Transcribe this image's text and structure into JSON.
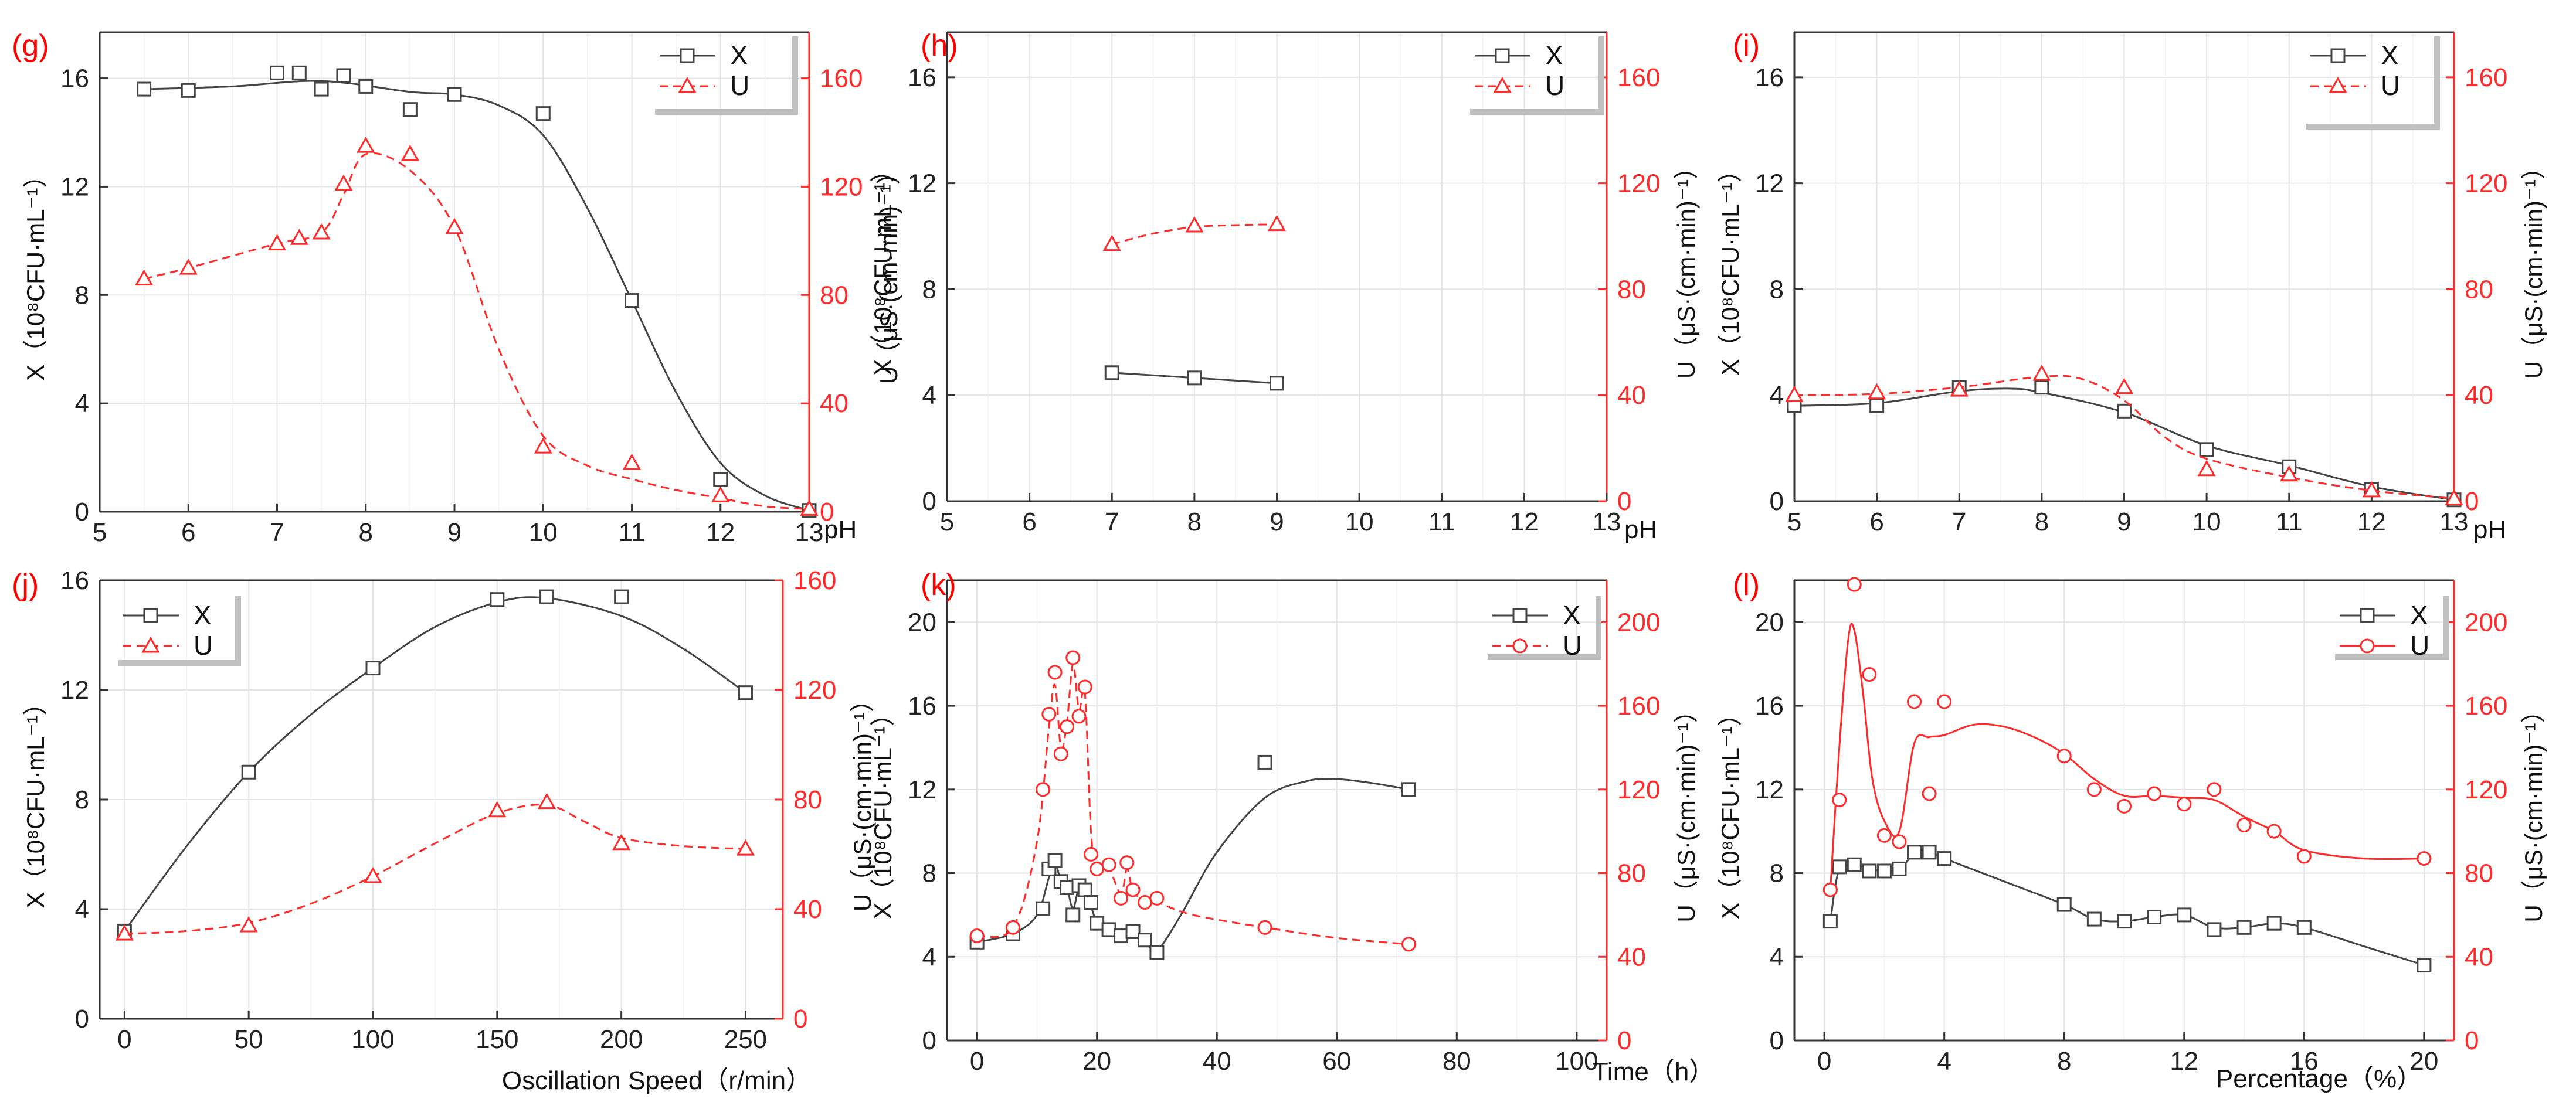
{
  "colors": {
    "x_series": "#444444",
    "u_series": "#ff2a2a",
    "grid": "#e4e4e4",
    "panel_label": "#ff0000",
    "legend_shadow": "#c0c0c0"
  },
  "chart_data": [
    {
      "panel": "(g)",
      "type": "line",
      "x_label": "pH",
      "xlim": [
        5,
        13
      ],
      "xticks": [
        5,
        6,
        7,
        8,
        9,
        10,
        11,
        12,
        13
      ],
      "ylabel_left": "X（10⁸CFU·mL⁻¹）",
      "ylim_left": [
        0,
        17.7
      ],
      "yticks_left": [
        0,
        4,
        8,
        12,
        16
      ],
      "ylabel_right": "U（μS·(cm·min)⁻¹）",
      "ylim_right": [
        0,
        177
      ],
      "yticks_right": [
        0,
        40,
        80,
        120,
        160
      ],
      "legend": [
        "X",
        "U"
      ],
      "legend_position": "top-right",
      "series": [
        {
          "name": "X",
          "axis": "left",
          "marker": "square",
          "line": "solid",
          "x": [
            5.5,
            6,
            7,
            7.25,
            7.5,
            7.75,
            8,
            8.5,
            9,
            10,
            11,
            12,
            13
          ],
          "y": [
            15.6,
            15.55,
            16.2,
            16.2,
            15.6,
            16.1,
            15.7,
            14.85,
            15.4,
            14.7,
            7.8,
            1.2,
            0.05
          ],
          "curve_x": [
            5.5,
            6.5,
            7.5,
            8.5,
            9,
            9.5,
            10,
            10.5,
            11,
            11.5,
            12,
            12.5,
            13
          ],
          "curve_y": [
            15.6,
            15.7,
            15.9,
            15.5,
            15.4,
            15.0,
            13.9,
            11.2,
            7.8,
            4.4,
            1.8,
            0.6,
            0.05
          ]
        },
        {
          "name": "U",
          "axis": "right",
          "marker": "triangle",
          "line": "dashed",
          "x": [
            5.5,
            6,
            7,
            7.25,
            7.5,
            7.75,
            8,
            8.5,
            9,
            10,
            11,
            12,
            13
          ],
          "y": [
            86,
            90,
            99,
            101,
            103,
            121,
            135,
            132,
            105,
            24,
            18,
            6,
            1
          ],
          "curve_x": [
            5.5,
            6,
            7,
            7.5,
            7.75,
            8,
            8.5,
            9,
            9.5,
            10,
            10.5,
            11,
            11.5,
            12,
            12.5,
            13
          ],
          "curve_y": [
            86,
            90,
            99,
            103,
            117,
            132,
            126,
            105,
            60,
            28,
            17,
            12,
            8,
            5,
            2,
            1
          ]
        }
      ]
    },
    {
      "panel": "(h)",
      "type": "line",
      "x_label": "pH",
      "xlim": [
        5,
        13
      ],
      "xticks": [
        5,
        6,
        7,
        8,
        9,
        10,
        11,
        12,
        13
      ],
      "ylabel_left": "X（10⁸CFU·mL⁻¹）",
      "ylim_left": [
        0,
        17.7
      ],
      "yticks_left": [
        0,
        4,
        8,
        12,
        16
      ],
      "ylabel_right": "U（μS·(cm·min)⁻¹）",
      "ylim_right": [
        0,
        177
      ],
      "yticks_right": [
        0,
        40,
        80,
        120,
        160
      ],
      "legend": [
        "X",
        "U"
      ],
      "legend_position": "top-right",
      "series": [
        {
          "name": "X",
          "axis": "left",
          "marker": "square",
          "line": "solid",
          "x": [
            7,
            8,
            9
          ],
          "y": [
            4.85,
            4.65,
            4.45
          ],
          "curve_x": [
            7,
            8,
            9
          ],
          "curve_y": [
            4.85,
            4.65,
            4.45
          ]
        },
        {
          "name": "U",
          "axis": "right",
          "marker": "triangle",
          "line": "dashed",
          "x": [
            7,
            8,
            9
          ],
          "y": [
            97,
            104,
            104.5
          ],
          "curve_x": [
            7,
            7.5,
            8,
            8.5,
            9
          ],
          "curve_y": [
            97,
            101,
            103.5,
            104.2,
            104.5
          ]
        }
      ]
    },
    {
      "panel": "(i)",
      "type": "line",
      "x_label": "pH",
      "xlim": [
        5,
        13
      ],
      "xticks": [
        5,
        6,
        7,
        8,
        9,
        10,
        11,
        12,
        13
      ],
      "ylabel_left": "X（10⁸CFU·mL⁻¹）",
      "ylim_left": [
        0,
        17.7
      ],
      "yticks_left": [
        0,
        4,
        8,
        12,
        16
      ],
      "ylabel_right": "U（μS·(cm·min)⁻¹）",
      "ylim_right": [
        0,
        177
      ],
      "yticks_right": [
        0,
        40,
        80,
        120,
        160
      ],
      "legend": [
        "X",
        "U"
      ],
      "legend_position": "top-right",
      "series": [
        {
          "name": "X",
          "axis": "left",
          "marker": "square",
          "line": "solid",
          "x": [
            5,
            6,
            7,
            8,
            9,
            10,
            11,
            12,
            13
          ],
          "y": [
            3.6,
            3.6,
            4.3,
            4.3,
            3.4,
            1.95,
            1.3,
            0.45,
            0.05
          ],
          "curve_x": [
            5,
            6,
            7,
            7.6,
            8,
            9,
            10,
            11,
            12,
            13
          ],
          "curve_y": [
            3.6,
            3.7,
            4.15,
            4.25,
            4.1,
            3.35,
            2.1,
            1.35,
            0.55,
            0.05
          ]
        },
        {
          "name": "U",
          "axis": "right",
          "marker": "triangle",
          "line": "dashed",
          "x": [
            5,
            6,
            7,
            8,
            9,
            10,
            11,
            12,
            13
          ],
          "y": [
            40,
            41,
            42,
            48,
            43,
            12,
            10,
            4,
            1
          ],
          "curve_x": [
            5,
            6,
            7,
            8,
            8.5,
            9,
            9.5,
            10,
            11,
            12,
            13
          ],
          "curve_y": [
            40,
            40.5,
            43,
            47,
            46,
            38,
            24,
            16,
            9,
            4,
            1
          ]
        }
      ]
    },
    {
      "panel": "(j)",
      "type": "line",
      "x_label": "Oscillation Speed（r/min）",
      "xlim": [
        -10,
        265
      ],
      "xticks": [
        0,
        50,
        100,
        150,
        200,
        250
      ],
      "ylabel_left": "X（10⁸CFU·mL⁻¹）",
      "ylim_left": [
        0,
        16
      ],
      "yticks_left": [
        0,
        4,
        8,
        12,
        16
      ],
      "ylabel_right": "U（μS·(cm·min)⁻¹）",
      "ylim_right": [
        0,
        160
      ],
      "yticks_right": [
        0,
        40,
        80,
        120,
        160
      ],
      "legend": [
        "X",
        "U"
      ],
      "legend_position": "top-left",
      "series": [
        {
          "name": "X",
          "axis": "left",
          "marker": "square",
          "line": "solid",
          "x": [
            0,
            50,
            100,
            150,
            170,
            200,
            250
          ],
          "y": [
            3.2,
            9.0,
            12.8,
            15.3,
            15.4,
            15.4,
            11.9
          ],
          "curve_x": [
            0,
            25,
            50,
            75,
            100,
            125,
            150,
            170,
            200,
            225,
            250
          ],
          "curve_y": [
            3.2,
            6.3,
            9.0,
            11.1,
            12.8,
            14.3,
            15.2,
            15.35,
            14.7,
            13.5,
            11.9
          ]
        },
        {
          "name": "U",
          "axis": "right",
          "marker": "triangle",
          "line": "dashed",
          "x": [
            0,
            50,
            100,
            150,
            170,
            200,
            250
          ],
          "y": [
            31,
            34,
            52,
            76,
            79,
            64,
            62
          ],
          "curve_x": [
            0,
            25,
            50,
            75,
            100,
            125,
            150,
            170,
            185,
            200,
            225,
            250
          ],
          "curve_y": [
            31,
            32,
            35,
            42,
            52,
            64,
            75,
            78,
            72,
            66,
            63,
            62
          ]
        }
      ]
    },
    {
      "panel": "(k)",
      "type": "line",
      "x_label": "Time（h）",
      "xlim": [
        -5,
        105
      ],
      "xticks": [
        0,
        20,
        40,
        60,
        80,
        100
      ],
      "ylabel_left": "X（10⁸CFU·mL⁻¹）",
      "ylim_left": [
        0,
        22
      ],
      "yticks_left": [
        0,
        4,
        8,
        12,
        16,
        20
      ],
      "ylabel_right": "U（μS·(cm·min)⁻¹）",
      "ylim_right": [
        0,
        220
      ],
      "yticks_right": [
        0,
        40,
        80,
        120,
        160,
        200
      ],
      "legend": [
        "X",
        "U"
      ],
      "legend_position": "top-right",
      "series": [
        {
          "name": "X",
          "axis": "left",
          "marker": "square",
          "line": "solid",
          "x": [
            0,
            6,
            11,
            12,
            13,
            14,
            15,
            16,
            17,
            18,
            19,
            20,
            22,
            24,
            26,
            28,
            30,
            48,
            72
          ],
          "y": [
            4.7,
            5.1,
            6.3,
            8.2,
            8.6,
            7.6,
            7.3,
            6.0,
            7.4,
            7.2,
            6.6,
            5.6,
            5.3,
            5.0,
            5.2,
            4.8,
            4.2,
            13.3,
            12.0
          ],
          "curve_x": [
            0,
            6,
            10,
            12,
            13,
            14,
            15,
            16,
            17,
            18,
            19,
            20,
            22,
            24,
            26,
            28,
            30,
            34,
            40,
            48,
            55,
            60,
            66,
            72
          ],
          "curve_y": [
            4.7,
            5.1,
            6.0,
            7.8,
            8.5,
            7.6,
            7.3,
            6.3,
            7.3,
            7.1,
            6.4,
            5.7,
            5.3,
            5.0,
            5.1,
            4.8,
            4.3,
            6.0,
            9.0,
            11.6,
            12.4,
            12.5,
            12.3,
            12.0
          ]
        },
        {
          "name": "U",
          "axis": "right",
          "marker": "circle",
          "line": "dashed",
          "x": [
            0,
            6,
            11,
            12,
            13,
            14,
            15,
            16,
            17,
            18,
            19,
            20,
            22,
            24,
            25,
            26,
            28,
            30,
            48,
            72
          ],
          "y": [
            50,
            54,
            120,
            156,
            176,
            137,
            150,
            183,
            155,
            169,
            89,
            82,
            84,
            68,
            85,
            72,
            66,
            68,
            54,
            46
          ],
          "curve_x": [
            0,
            6,
            10,
            12,
            13,
            14,
            15,
            16,
            17,
            18,
            19,
            20,
            22,
            24,
            25,
            26,
            28,
            30,
            36,
            48,
            60,
            72
          ],
          "curve_y": [
            50,
            54,
            95,
            150,
            170,
            140,
            152,
            180,
            158,
            166,
            100,
            82,
            82,
            70,
            82,
            72,
            66,
            66,
            60,
            54,
            49,
            46
          ]
        }
      ]
    },
    {
      "panel": "(l)",
      "type": "line",
      "x_label": "Percentage（%）",
      "xlim": [
        -1,
        21
      ],
      "xticks": [
        0,
        4,
        8,
        12,
        16,
        20
      ],
      "ylabel_left": "X（10⁸CFU·mL⁻¹）",
      "ylim_left": [
        0,
        22
      ],
      "yticks_left": [
        0,
        4,
        8,
        12,
        16,
        20
      ],
      "ylabel_right": "U（μS·(cm·min)⁻¹）",
      "ylim_right": [
        0,
        220
      ],
      "yticks_right": [
        0,
        40,
        80,
        120,
        160,
        200
      ],
      "legend": [
        "X",
        "U"
      ],
      "legend_position": "top-right",
      "series": [
        {
          "name": "X",
          "axis": "left",
          "marker": "square",
          "line": "solid",
          "x": [
            0.2,
            0.5,
            1,
            1.5,
            2,
            2.5,
            3,
            3.5,
            4,
            8,
            9,
            10,
            11,
            12,
            13,
            14,
            15,
            16,
            20
          ],
          "y": [
            5.7,
            8.3,
            8.4,
            8.1,
            8.1,
            8.2,
            9.0,
            9.0,
            8.7,
            6.5,
            5.8,
            5.7,
            5.9,
            6.0,
            5.3,
            5.4,
            5.6,
            5.4,
            3.6
          ],
          "curve_x": [
            0.2,
            0.5,
            1,
            1.5,
            2,
            2.5,
            3,
            3.5,
            4,
            6,
            8,
            9,
            10,
            11,
            12,
            13,
            14,
            15,
            16,
            18,
            20
          ],
          "curve_y": [
            5.7,
            8.2,
            8.4,
            8.2,
            8.1,
            8.2,
            8.9,
            9.0,
            8.7,
            7.6,
            6.5,
            5.8,
            5.7,
            5.9,
            6.0,
            5.4,
            5.4,
            5.6,
            5.4,
            4.5,
            3.6
          ]
        },
        {
          "name": "U",
          "axis": "right",
          "marker": "circle",
          "line": "solid",
          "x": [
            0.2,
            0.5,
            1,
            1.5,
            2,
            2.5,
            3,
            3.5,
            4,
            8,
            9,
            10,
            11,
            12,
            13,
            14,
            15,
            16,
            20
          ],
          "y": [
            72,
            115,
            218,
            175,
            98,
            95,
            162,
            118,
            162,
            136,
            120,
            112,
            118,
            113,
            120,
            103,
            100,
            88,
            87
          ],
          "curve_x": [
            0.2,
            0.5,
            0.8,
            1,
            1.3,
            1.6,
            2,
            2.5,
            3,
            3.5,
            4,
            5,
            6,
            7,
            8,
            9,
            10,
            11,
            12,
            13,
            14,
            15,
            16,
            18,
            20
          ],
          "curve_y": [
            72,
            140,
            192,
            196,
            165,
            125,
            105,
            100,
            142,
            145,
            146,
            151,
            150,
            145,
            137,
            125,
            117,
            117,
            116,
            115,
            107,
            100,
            91,
            87,
            87
          ]
        }
      ]
    }
  ]
}
